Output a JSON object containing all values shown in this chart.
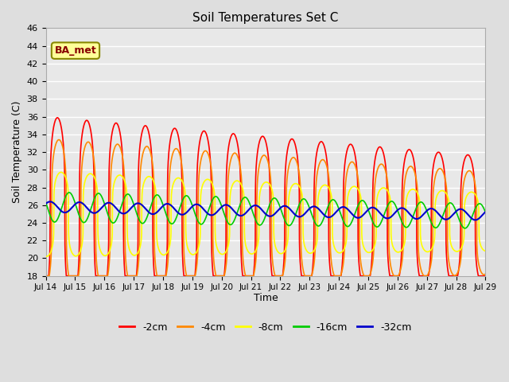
{
  "title": "Soil Temperatures Set C",
  "xlabel": "Time",
  "ylabel": "Soil Temperature (C)",
  "ylim": [
    18,
    46
  ],
  "yticks": [
    18,
    20,
    22,
    24,
    26,
    28,
    30,
    32,
    34,
    36,
    38,
    40,
    42,
    44,
    46
  ],
  "xtick_labels": [
    "Jul 14",
    "Jul 15",
    "Jul 16",
    "Jul 17",
    "Jul 18",
    "Jul 19",
    "Jul 20",
    "Jul 21",
    "Jul 22",
    "Jul 23",
    "Jul 24",
    "Jul 25",
    "Jul 26",
    "Jul 27",
    "Jul 28",
    "Jul 29"
  ],
  "background_color": "#dedede",
  "plot_bg_color": "#e8e8e8",
  "grid_color": "#ffffff",
  "series": {
    "cm2": {
      "color": "#ff0000",
      "label": "-2cm",
      "lw": 1.2
    },
    "cm4": {
      "color": "#ff8800",
      "label": "-4cm",
      "lw": 1.2
    },
    "cm8": {
      "color": "#ffff00",
      "label": "-8cm",
      "lw": 1.2
    },
    "cm16": {
      "color": "#00cc00",
      "label": "-16cm",
      "lw": 1.2
    },
    "cm32": {
      "color": "#0000cc",
      "label": "-32cm",
      "lw": 1.5
    }
  },
  "annotation": {
    "text": "BA_met",
    "fontsize": 9,
    "bbox_facecolor": "#ffff99",
    "bbox_edgecolor": "#888800"
  }
}
